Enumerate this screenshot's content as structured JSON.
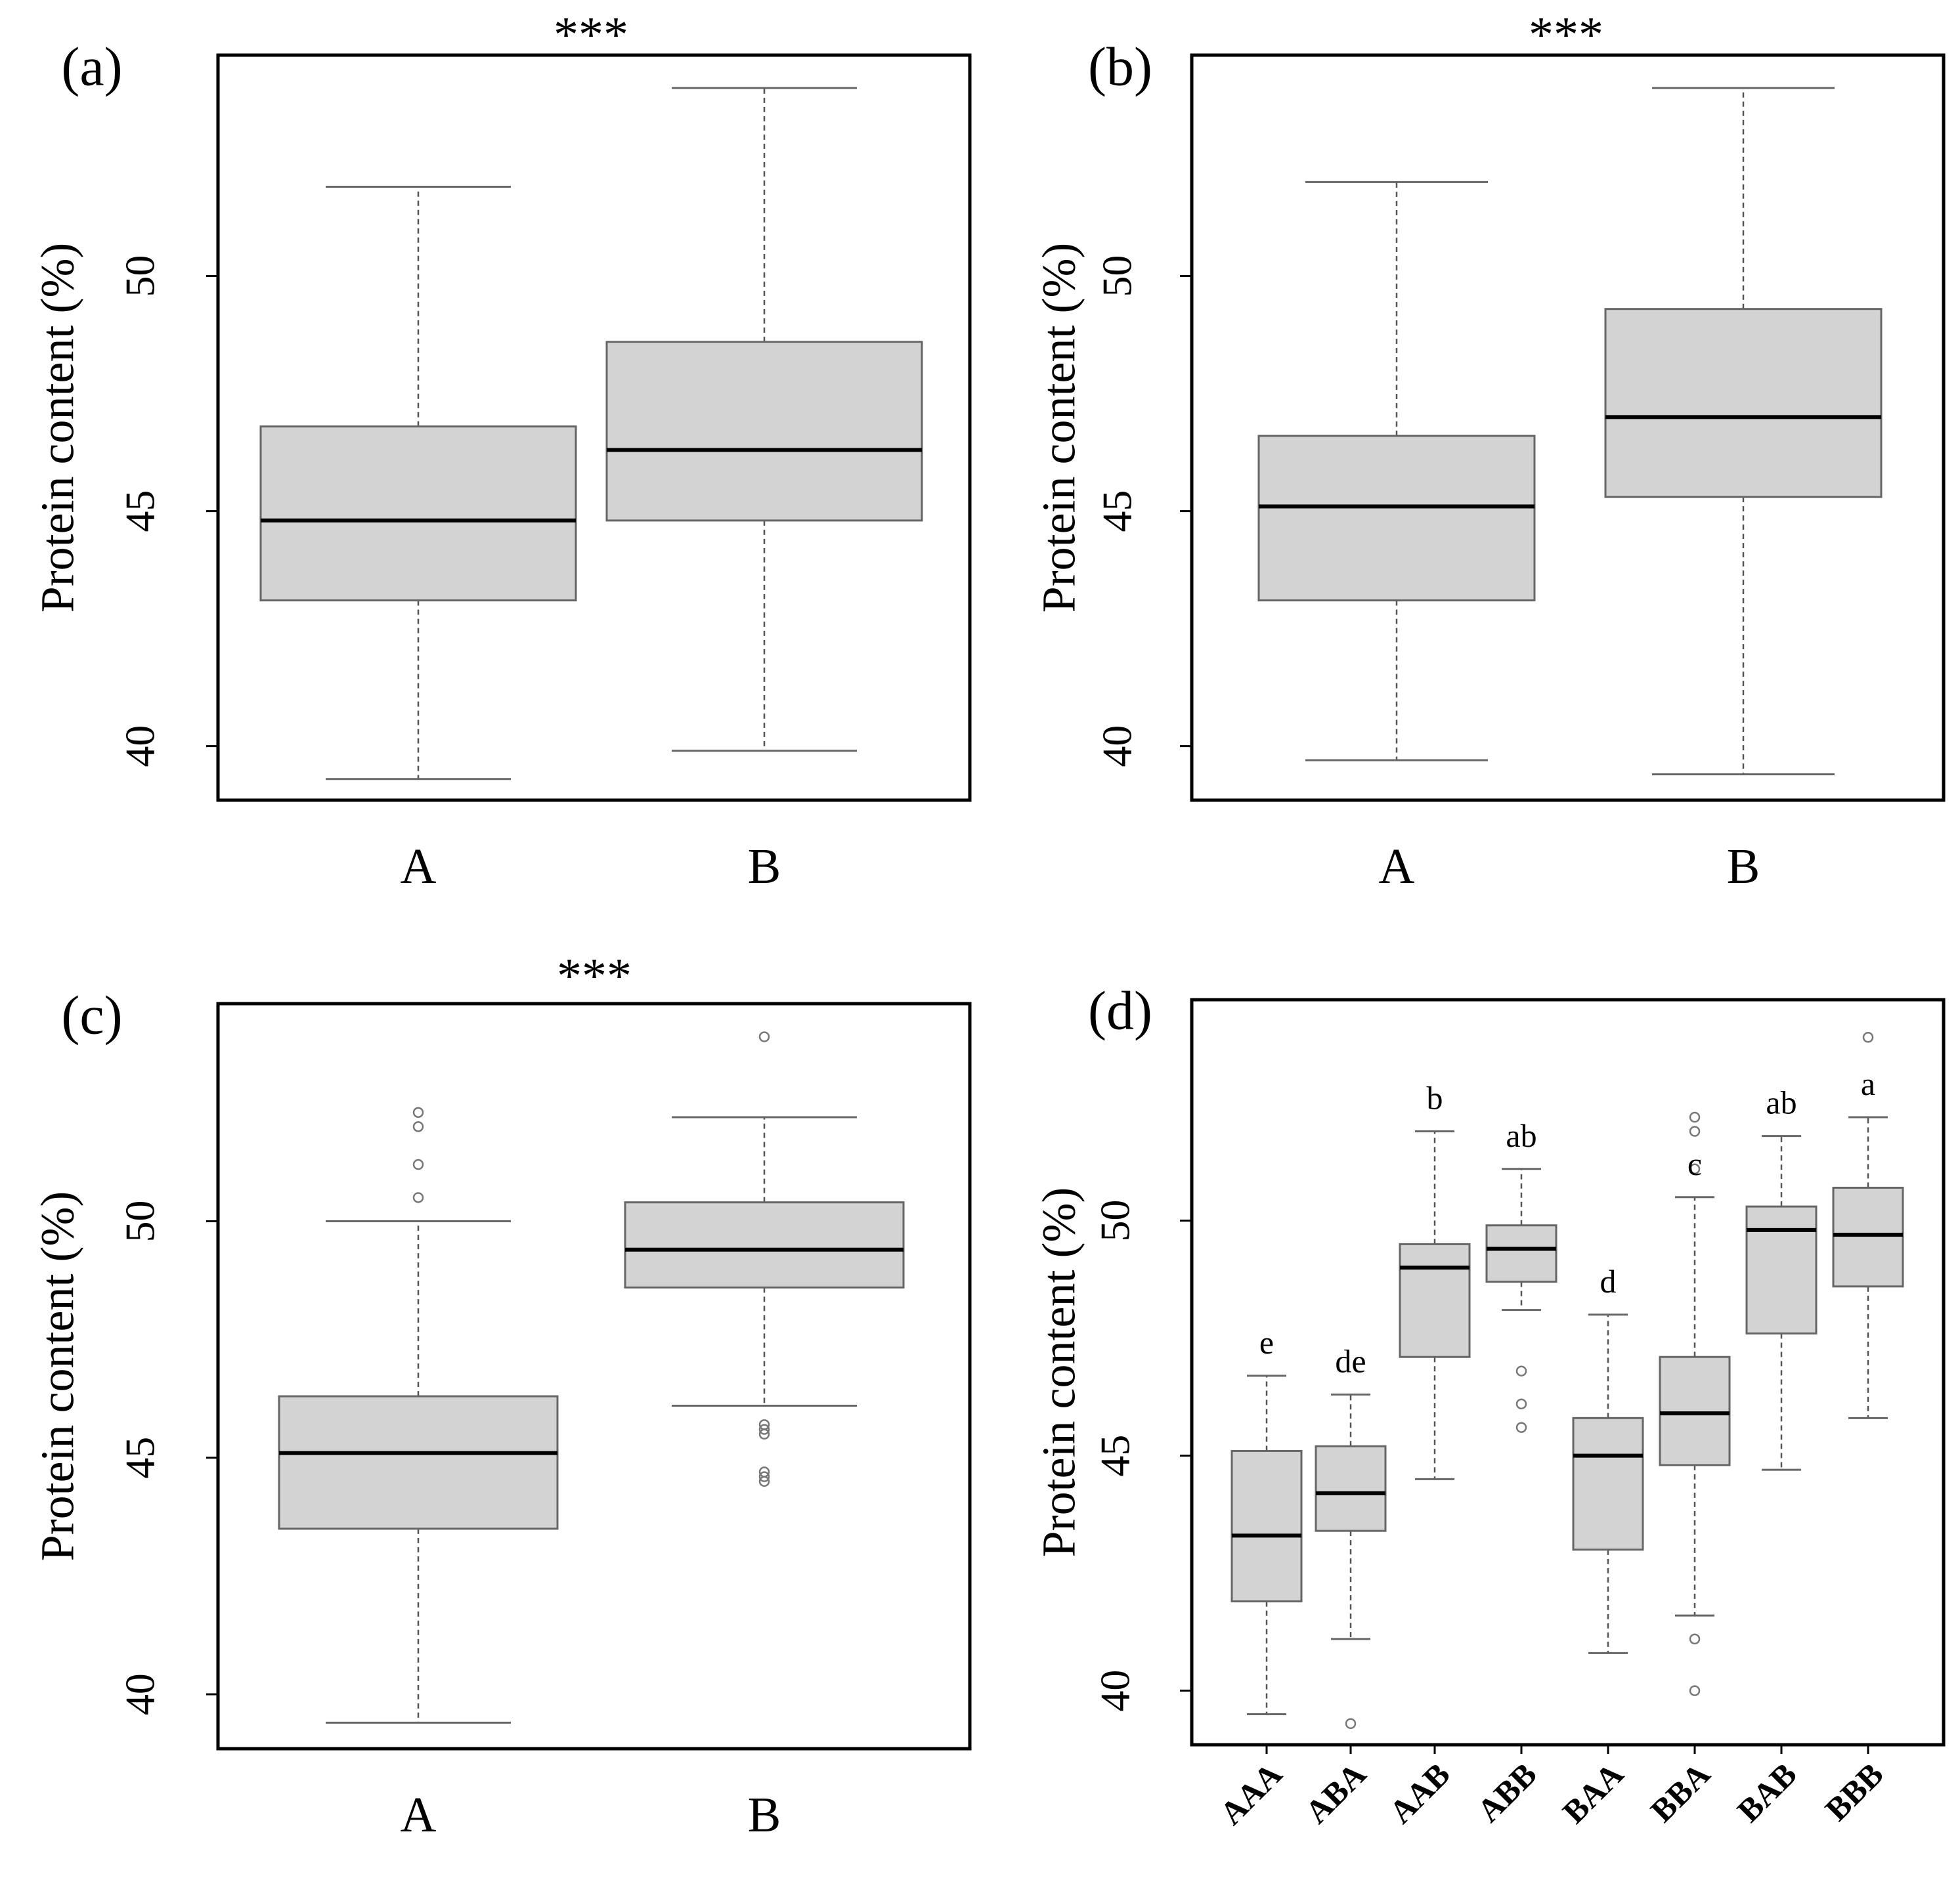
{
  "chart_data": [
    {
      "type": "boxplot",
      "panel": "(a)",
      "significance": "***",
      "ylabel": "Protein content (%)",
      "yticks": [
        40,
        45,
        50
      ],
      "ylim": [
        38.85,
        54.7
      ],
      "categories": [
        "A",
        "B"
      ],
      "boxes": [
        {
          "name": "A",
          "whisker_low": 39.3,
          "q1": 43.1,
          "median": 44.8,
          "q3": 46.8,
          "whisker_high": 51.9,
          "outliers": []
        },
        {
          "name": "B",
          "whisker_low": 39.9,
          "q1": 44.8,
          "median": 46.3,
          "q3": 48.6,
          "whisker_high": 54.0,
          "outliers": []
        }
      ]
    },
    {
      "type": "boxplot",
      "panel": "(b)",
      "significance": "***",
      "ylabel": "Protein content (%)",
      "yticks": [
        40,
        45,
        50
      ],
      "ylim": [
        38.85,
        54.7
      ],
      "categories": [
        "A",
        "B"
      ],
      "boxes": [
        {
          "name": "A",
          "whisker_low": 39.7,
          "q1": 43.1,
          "median": 45.1,
          "q3": 46.6,
          "whisker_high": 52.0,
          "outliers": []
        },
        {
          "name": "B",
          "whisker_low": 39.4,
          "q1": 45.3,
          "median": 47.0,
          "q3": 49.3,
          "whisker_high": 54.0,
          "outliers": []
        }
      ]
    },
    {
      "type": "boxplot",
      "panel": "(c)",
      "significance": "***",
      "ylabel": "Protein content (%)",
      "yticks": [
        40,
        45,
        50
      ],
      "ylim": [
        38.85,
        54.6
      ],
      "categories": [
        "A",
        "B"
      ],
      "boxes": [
        {
          "name": "A",
          "whisker_low": 39.4,
          "q1": 43.5,
          "median": 45.1,
          "q3": 46.3,
          "whisker_high": 50.0,
          "outliers": [
            50.5,
            51.2,
            52.0,
            52.3
          ]
        },
        {
          "name": "B",
          "whisker_low": 46.1,
          "q1": 48.6,
          "median": 49.4,
          "q3": 50.4,
          "whisker_high": 52.2,
          "outliers": [
            45.6,
            45.5,
            45.7,
            44.7,
            44.6,
            44.5,
            53.9
          ]
        }
      ]
    },
    {
      "type": "boxplot",
      "panel": "(d)",
      "ylabel": "Protein content (%)",
      "yticks": [
        40,
        45,
        50
      ],
      "ylim": [
        38.85,
        54.7
      ],
      "categories": [
        "AAA",
        "ABA",
        "AAB",
        "ABB",
        "BAA",
        "BBA",
        "BAB",
        "BBB"
      ],
      "boxes": [
        {
          "name": "AAA",
          "group_letter": "e",
          "whisker_low": 39.5,
          "q1": 41.9,
          "median": 43.3,
          "q3": 45.1,
          "whisker_high": 46.7,
          "outliers": []
        },
        {
          "name": "ABA",
          "group_letter": "de",
          "whisker_low": 41.1,
          "q1": 43.4,
          "median": 44.2,
          "q3": 45.2,
          "whisker_high": 46.3,
          "outliers": [
            39.3
          ]
        },
        {
          "name": "AAB",
          "group_letter": "b",
          "whisker_low": 44.5,
          "q1": 47.1,
          "median": 49.0,
          "q3": 49.5,
          "whisker_high": 51.9,
          "outliers": []
        },
        {
          "name": "ABB",
          "group_letter": "ab",
          "whisker_low": 48.1,
          "q1": 48.7,
          "median": 49.4,
          "q3": 49.9,
          "whisker_high": 51.1,
          "outliers": [
            46.8,
            46.1,
            45.6
          ]
        },
        {
          "name": "BAA",
          "group_letter": "d",
          "whisker_low": 40.8,
          "q1": 43.0,
          "median": 45.0,
          "q3": 45.8,
          "whisker_high": 48.0,
          "outliers": []
        },
        {
          "name": "BBA",
          "group_letter": "c",
          "whisker_low": 41.6,
          "q1": 44.8,
          "median": 45.9,
          "q3": 47.1,
          "whisker_high": 50.5,
          "outliers": [
            51.1,
            51.9,
            52.2,
            41.1,
            40.0
          ]
        },
        {
          "name": "BAB",
          "group_letter": "ab",
          "whisker_low": 44.7,
          "q1": 47.6,
          "median": 49.8,
          "q3": 50.3,
          "whisker_high": 51.8,
          "outliers": []
        },
        {
          "name": "BBB",
          "group_letter": "a",
          "whisker_low": 45.8,
          "q1": 48.6,
          "median": 49.7,
          "q3": 50.7,
          "whisker_high": 52.2,
          "outliers": [
            53.9
          ]
        }
      ]
    }
  ]
}
